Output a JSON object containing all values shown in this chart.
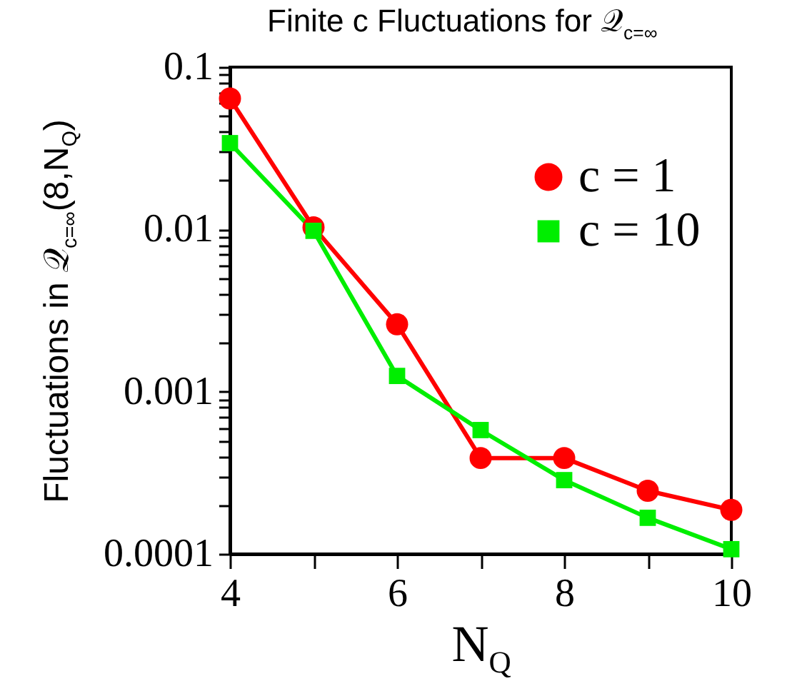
{
  "chart_data": {
    "type": "line",
    "title": "Finite c Fluctuations for 𝒬$_{c=∞}$",
    "xlabel": "N$_{Q}$",
    "ylabel": "Fluctuations in 𝒬$_{c=∞}$(8,N$_{Q}$)",
    "x": [
      4,
      5,
      6,
      7,
      8,
      9,
      10
    ],
    "series": [
      {
        "name": "c = 1",
        "color": "#ff0000",
        "marker": "circle",
        "values": [
          0.064,
          0.0103,
          0.0026,
          0.00039,
          0.00039,
          0.000245,
          0.000187
        ]
      },
      {
        "name": "c = 10",
        "color": "#00ee00",
        "marker": "square",
        "values": [
          0.034,
          0.0098,
          0.00125,
          0.00058,
          0.000285,
          0.000167,
          0.000107
        ]
      }
    ],
    "log": "y",
    "grid": false,
    "legend": "top right",
    "line_style": "solid",
    "xlim": [
      4,
      10
    ],
    "xticks": [
      4,
      {
        "value": 5,
        "label": null
      },
      6,
      {
        "value": 7,
        "label": null
      },
      8,
      {
        "value": 9,
        "label": null
      },
      10
    ],
    "ylim": [
      0.0001,
      0.1
    ],
    "yticks": [
      0.0001,
      {
        "value": 0.0002,
        "label": null
      },
      {
        "value": 0.0003,
        "label": null
      },
      {
        "value": 0.0004,
        "label": null
      },
      {
        "value": 0.0005,
        "label": null
      },
      {
        "value": 0.0006,
        "label": null
      },
      {
        "value": 0.0007,
        "label": null
      },
      {
        "value": 0.0008,
        "label": null
      },
      {
        "value": 0.0009,
        "label": null
      },
      0.001,
      {
        "value": 0.002,
        "label": null
      },
      {
        "value": 0.003,
        "label": null
      },
      {
        "value": 0.004,
        "label": null
      },
      {
        "value": 0.005,
        "label": null
      },
      {
        "value": 0.006,
        "label": null
      },
      {
        "value": 0.007,
        "label": null
      },
      {
        "value": 0.008,
        "label": null
      },
      {
        "value": 0.009,
        "label": null
      },
      0.01,
      {
        "value": 0.02,
        "label": null
      },
      {
        "value": 0.03,
        "label": null
      },
      {
        "value": 0.04,
        "label": null
      },
      {
        "value": 0.05,
        "label": null
      },
      {
        "value": 0.06,
        "label": null
      },
      {
        "value": 0.07,
        "label": null
      },
      {
        "value": 0.08,
        "label": null
      },
      {
        "value": 0.09,
        "label": null
      },
      0.1
    ]
  }
}
